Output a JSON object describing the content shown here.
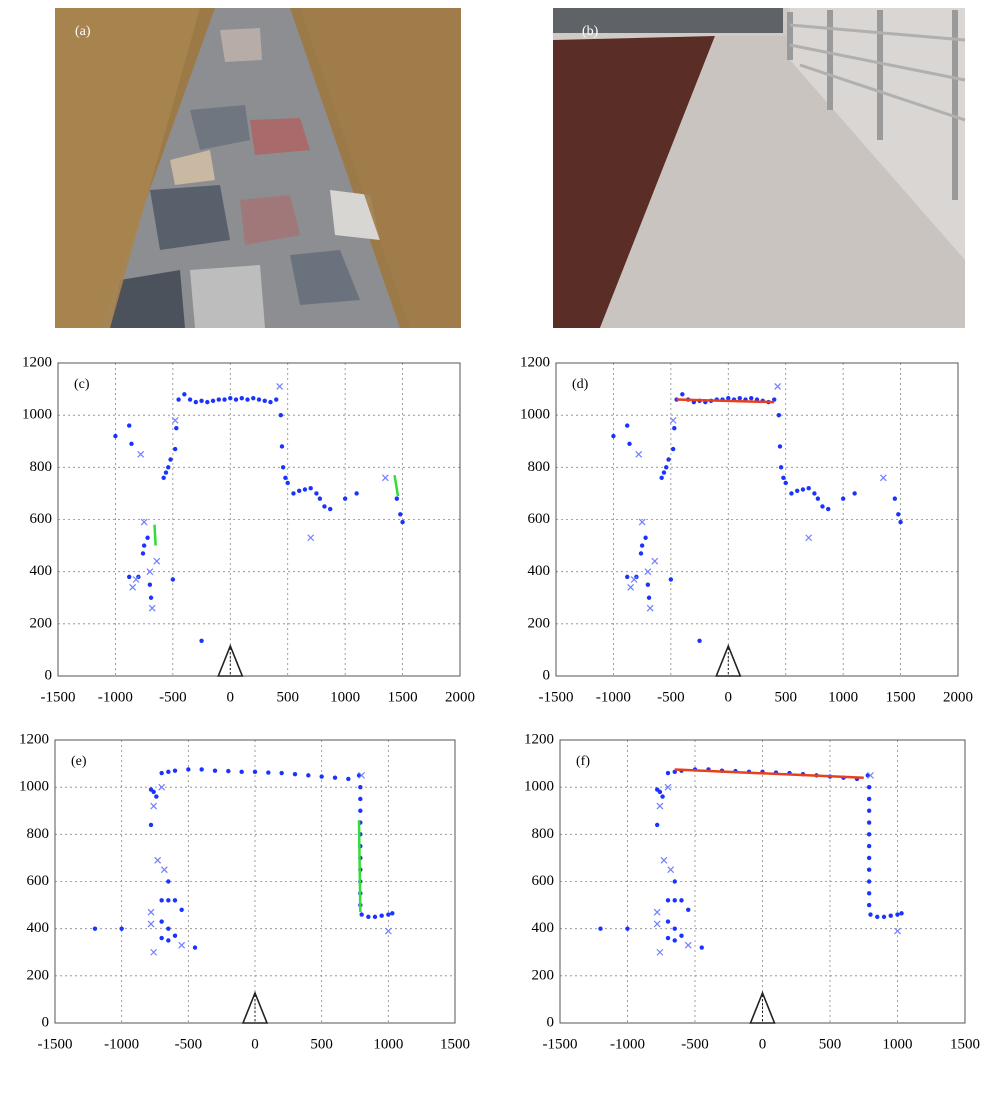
{
  "photos": [
    {
      "label": "(a)"
    },
    {
      "label": "(b)"
    }
  ],
  "chart_data": [
    {
      "type": "scatter",
      "annotation": "(c)",
      "xlim": [
        -1500,
        2000
      ],
      "ylim": [
        0,
        1200
      ],
      "xticks": [
        -1500,
        -1000,
        -500,
        0,
        500,
        1000,
        1500,
        2000
      ],
      "yticks": [
        0,
        200,
        400,
        600,
        800,
        1000,
        1200
      ],
      "grid": true,
      "series": [
        {
          "marker": "dot",
          "color": "#1a33ff",
          "x": [
            -1000,
            -860,
            -880,
            -560,
            -580,
            -540,
            -520,
            -480,
            -470,
            -450,
            -400,
            -350,
            -300,
            -250,
            -200,
            -150,
            -100,
            -50,
            0,
            50,
            100,
            150,
            200,
            250,
            300,
            350,
            400,
            440,
            450,
            460,
            480,
            500,
            550,
            600,
            650,
            700,
            750,
            780,
            820,
            870,
            1000,
            1100,
            1450,
            1480,
            1500,
            -750,
            -760,
            -720,
            -800,
            -700,
            -690,
            -500,
            -880,
            -250
          ],
          "values": [
            920,
            890,
            960,
            780,
            760,
            800,
            830,
            870,
            950,
            1060,
            1080,
            1060,
            1050,
            1055,
            1050,
            1055,
            1060,
            1060,
            1065,
            1060,
            1065,
            1060,
            1065,
            1060,
            1055,
            1050,
            1060,
            1000,
            880,
            800,
            760,
            740,
            700,
            710,
            715,
            720,
            700,
            680,
            650,
            640,
            680,
            700,
            680,
            620,
            590,
            500,
            470,
            530,
            380,
            350,
            300,
            370,
            380,
            135
          ]
        },
        {
          "marker": "x",
          "color": "#6f80ff",
          "x": [
            -780,
            -480,
            430,
            -850,
            -680,
            -640,
            700,
            1350,
            -820,
            -750,
            -700
          ],
          "values": [
            850,
            980,
            1110,
            340,
            260,
            440,
            530,
            760,
            370,
            590,
            400
          ]
        },
        {
          "marker": "line",
          "color": "#33dd33",
          "x": [
            -660,
            -650
          ],
          "values": [
            580,
            500
          ]
        },
        {
          "marker": "line",
          "color": "#33dd33",
          "x": [
            1430,
            1460
          ],
          "values": [
            770,
            690
          ]
        }
      ]
    },
    {
      "type": "scatter",
      "annotation": "(d)",
      "xlim": [
        -1500,
        2000
      ],
      "ylim": [
        0,
        1200
      ],
      "xticks": [
        -1500,
        -1000,
        -500,
        0,
        500,
        1000,
        1500,
        2000
      ],
      "yticks": [
        0,
        200,
        400,
        600,
        800,
        1000,
        1200
      ],
      "grid": true,
      "series": [
        {
          "marker": "dot",
          "color": "#1a33ff",
          "x": [
            -1000,
            -860,
            -880,
            -560,
            -580,
            -540,
            -520,
            -480,
            -470,
            -450,
            -400,
            -350,
            -300,
            -250,
            -200,
            -150,
            -100,
            -50,
            0,
            50,
            100,
            150,
            200,
            250,
            300,
            350,
            400,
            440,
            450,
            460,
            480,
            500,
            550,
            600,
            650,
            700,
            750,
            780,
            820,
            870,
            1000,
            1100,
            1450,
            1480,
            1500,
            -750,
            -760,
            -720,
            -800,
            -700,
            -690,
            -500,
            -880,
            -250
          ],
          "values": [
            920,
            890,
            960,
            780,
            760,
            800,
            830,
            870,
            950,
            1060,
            1080,
            1060,
            1050,
            1055,
            1050,
            1055,
            1060,
            1060,
            1065,
            1060,
            1065,
            1060,
            1065,
            1060,
            1055,
            1050,
            1060,
            1000,
            880,
            800,
            760,
            740,
            700,
            710,
            715,
            720,
            700,
            680,
            650,
            640,
            680,
            700,
            680,
            620,
            590,
            500,
            470,
            530,
            380,
            350,
            300,
            370,
            380,
            135
          ]
        },
        {
          "marker": "x",
          "color": "#6f80ff",
          "x": [
            -780,
            -480,
            430,
            -850,
            -680,
            -640,
            700,
            1350,
            -820,
            -750,
            -700
          ],
          "values": [
            850,
            980,
            1110,
            340,
            260,
            440,
            530,
            760,
            370,
            590,
            400
          ]
        },
        {
          "marker": "line",
          "color": "#e8401c",
          "x": [
            -450,
            400
          ],
          "values": [
            1060,
            1050
          ]
        }
      ]
    },
    {
      "type": "scatter",
      "annotation": "(e)",
      "xlim": [
        -1500,
        1500
      ],
      "ylim": [
        0,
        1200
      ],
      "xticks": [
        -1500,
        -1000,
        -500,
        0,
        500,
        1000,
        1500
      ],
      "yticks": [
        0,
        200,
        400,
        600,
        800,
        1000,
        1200
      ],
      "grid": true,
      "series": [
        {
          "marker": "dot",
          "color": "#1a33ff",
          "x": [
            -700,
            -650,
            -600,
            -500,
            -400,
            -300,
            -200,
            -100,
            0,
            100,
            200,
            300,
            400,
            500,
            600,
            700,
            780,
            790,
            790,
            790,
            790,
            790,
            790,
            790,
            790,
            790,
            790,
            790,
            800,
            850,
            900,
            950,
            1000,
            1030,
            -780,
            -760,
            -740,
            -780,
            -650,
            -700,
            -650,
            -600,
            -550,
            -700,
            -650,
            -700,
            -650,
            -600,
            -1200,
            -1000,
            -450
          ],
          "values": [
            1060,
            1065,
            1070,
            1075,
            1075,
            1070,
            1068,
            1065,
            1065,
            1062,
            1060,
            1055,
            1050,
            1045,
            1040,
            1035,
            1050,
            1000,
            950,
            900,
            850,
            800,
            750,
            700,
            650,
            600,
            550,
            500,
            460,
            450,
            450,
            455,
            460,
            465,
            990,
            980,
            960,
            840,
            600,
            520,
            520,
            520,
            480,
            430,
            400,
            360,
            350,
            370,
            400,
            400,
            320
          ]
        },
        {
          "marker": "x",
          "color": "#6f80ff",
          "x": [
            -730,
            -680,
            -780,
            -760,
            -550,
            -760,
            -700,
            800,
            1000,
            -780
          ],
          "values": [
            690,
            650,
            470,
            300,
            330,
            920,
            1000,
            1050,
            390,
            420
          ]
        },
        {
          "marker": "line",
          "color": "#33dd33",
          "x": [
            780,
            790
          ],
          "values": [
            860,
            470
          ]
        }
      ]
    },
    {
      "type": "scatter",
      "annotation": "(f)",
      "xlim": [
        -1500,
        1500
      ],
      "ylim": [
        0,
        1200
      ],
      "xticks": [
        -1500,
        -1000,
        -500,
        0,
        500,
        1000,
        1500
      ],
      "yticks": [
        0,
        200,
        400,
        600,
        800,
        1000,
        1200
      ],
      "grid": true,
      "series": [
        {
          "marker": "dot",
          "color": "#1a33ff",
          "x": [
            -700,
            -650,
            -600,
            -500,
            -400,
            -300,
            -200,
            -100,
            0,
            100,
            200,
            300,
            400,
            500,
            600,
            700,
            780,
            790,
            790,
            790,
            790,
            790,
            790,
            790,
            790,
            790,
            790,
            790,
            800,
            850,
            900,
            950,
            1000,
            1030,
            -780,
            -760,
            -740,
            -780,
            -650,
            -700,
            -650,
            -600,
            -550,
            -700,
            -650,
            -700,
            -650,
            -600,
            -1200,
            -1000,
            -450
          ],
          "values": [
            1060,
            1065,
            1070,
            1075,
            1075,
            1070,
            1068,
            1065,
            1065,
            1062,
            1060,
            1055,
            1050,
            1045,
            1040,
            1035,
            1050,
            1000,
            950,
            900,
            850,
            800,
            750,
            700,
            650,
            600,
            550,
            500,
            460,
            450,
            450,
            455,
            460,
            465,
            990,
            980,
            960,
            840,
            600,
            520,
            520,
            520,
            480,
            430,
            400,
            360,
            350,
            370,
            400,
            400,
            320
          ]
        },
        {
          "marker": "x",
          "color": "#6f80ff",
          "x": [
            -730,
            -680,
            -780,
            -760,
            -550,
            -760,
            -700,
            800,
            1000,
            -780
          ],
          "values": [
            690,
            650,
            470,
            300,
            330,
            920,
            1000,
            1050,
            390,
            420
          ]
        },
        {
          "marker": "line",
          "color": "#e8401c",
          "x": [
            -650,
            750
          ],
          "values": [
            1075,
            1040
          ]
        }
      ]
    }
  ]
}
